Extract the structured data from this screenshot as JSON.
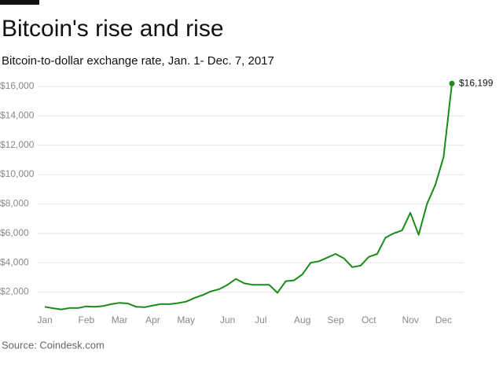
{
  "chart_data": {
    "type": "line",
    "title": "Bitcoin's rise and rise",
    "subtitle": "Bitcoin-to-dollar exchange rate, Jan. 1- Dec. 7, 2017",
    "source": "Source: Coindesk.com",
    "categories": [
      "Jan",
      null,
      null,
      null,
      null,
      "Feb",
      null,
      null,
      null,
      "Mar",
      null,
      null,
      null,
      "Apr",
      null,
      null,
      null,
      "May",
      null,
      null,
      null,
      null,
      "Jun",
      null,
      null,
      null,
      "Jul",
      null,
      null,
      null,
      null,
      "Aug",
      null,
      null,
      null,
      "Sep",
      null,
      null,
      null,
      "Oct",
      null,
      null,
      null,
      null,
      "Nov",
      null,
      null,
      null,
      "Dec",
      null
    ],
    "series": [
      {
        "name": "Bitcoin",
        "color": "#1a8a1a",
        "values": [
          1000,
          900,
          820,
          920,
          920,
          1030,
          1000,
          1050,
          1180,
          1270,
          1230,
          1000,
          970,
          1090,
          1190,
          1180,
          1250,
          1350,
          1600,
          1800,
          2050,
          2200,
          2500,
          2900,
          2600,
          2500,
          2500,
          2500,
          1950,
          2750,
          2800,
          3200,
          4000,
          4100,
          4350,
          4600,
          4300,
          3700,
          3800,
          4400,
          4600,
          5700,
          6000,
          6200,
          7400,
          5900,
          8000,
          9300,
          11200,
          16199
        ],
        "value_labels": [
          null,
          null,
          null,
          null,
          null,
          null,
          null,
          null,
          null,
          null,
          null,
          null,
          null,
          null,
          null,
          null,
          null,
          null,
          null,
          null,
          null,
          null,
          null,
          null,
          null,
          null,
          null,
          null,
          null,
          null,
          null,
          null,
          null,
          null,
          null,
          null,
          null,
          null,
          null,
          null,
          null,
          null,
          null,
          null,
          null,
          null,
          null,
          null,
          null,
          "$16,199"
        ]
      }
    ],
    "ylim": [
      800,
      16800
    ],
    "yticks": [
      {
        "value": 2000,
        "label": "$2,000"
      },
      {
        "value": 4000,
        "label": "$4,000"
      },
      {
        "value": 6000,
        "label": "$6,000"
      },
      {
        "value": 8000,
        "label": "$8,000"
      },
      {
        "value": 10000,
        "label": "$10,000"
      },
      {
        "value": 12000,
        "label": "$12,000"
      },
      {
        "value": 14000,
        "label": "$14,000"
      },
      {
        "value": 16000,
        "label": "$16,000"
      }
    ],
    "grid": true
  }
}
